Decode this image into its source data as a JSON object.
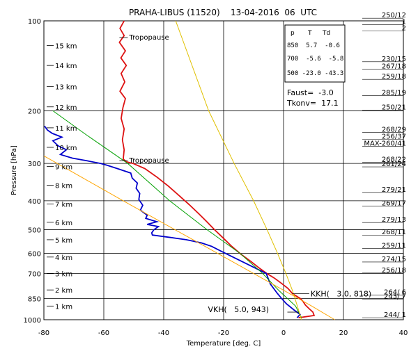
{
  "chart_data": {
    "type": "line",
    "title": "PRAHA-LIBUS (11520)    13-04-2016  06  UTC",
    "xlabel": "Temperature [deg. C]",
    "ylabel": "Pressure [hPa]",
    "xlim": [
      -80,
      40
    ],
    "ylim": [
      1000,
      100
    ],
    "y_scale": "log",
    "grid": true,
    "x_ticks": [
      -80,
      -60,
      -40,
      -20,
      0,
      20,
      40
    ],
    "y_ticks": [
      100,
      200,
      300,
      400,
      500,
      600,
      700,
      850,
      1000
    ],
    "y_tick_labels": [
      "100",
      "200",
      "300",
      "400",
      "500",
      "600",
      "700",
      "850",
      "1000"
    ],
    "height_levels": [
      {
        "label": "1 km",
        "p": 900
      },
      {
        "label": "2 km",
        "p": 795
      },
      {
        "label": "3 km",
        "p": 701
      },
      {
        "label": "4 km",
        "p": 617
      },
      {
        "label": "5 km",
        "p": 540
      },
      {
        "label": "6 km",
        "p": 472
      },
      {
        "label": "7 km",
        "p": 410
      },
      {
        "label": "8 km",
        "p": 355
      },
      {
        "label": "9 km",
        "p": 307
      },
      {
        "label": "10 km",
        "p": 265
      },
      {
        "label": "11 km",
        "p": 228
      },
      {
        "label": "12 km",
        "p": 194
      },
      {
        "label": "13 km",
        "p": 166
      },
      {
        "label": "14 km",
        "p": 141
      },
      {
        "label": "15 km",
        "p": 121
      }
    ],
    "info_table": {
      "header": [
        "p",
        "T",
        "Td"
      ],
      "rows": [
        "850  5.7  -0.6",
        "700  -5.6  -5.8",
        "500 -23.0 -43.3"
      ]
    },
    "faust": "Faust=  -3.0",
    "tkonv": "Tkonv=  17.1",
    "annotations": [
      {
        "text": "Tropopause",
        "t": -52,
        "p": 112
      },
      {
        "text": "Tropopause",
        "t": -52,
        "p": 289
      }
    ],
    "levels_text": [
      {
        "text": "KKH(   3.0, 818)",
        "t": 3.0,
        "p": 818
      },
      {
        "text": "VKH(   5.0, 943)",
        "t": 5.0,
        "p": 943
      }
    ],
    "wind_labels": [
      {
        "text": "250/12",
        "p": 98
      },
      {
        "text": "1",
        "p": 103
      },
      {
        "text": "2",
        "p": 108
      },
      {
        "text": "230/15",
        "p": 137
      },
      {
        "text": "267/18",
        "p": 145
      },
      {
        "text": "259/18",
        "p": 157
      },
      {
        "text": "285/19",
        "p": 178
      },
      {
        "text": "250/21",
        "p": 199
      },
      {
        "text": "268/29",
        "p": 236
      },
      {
        "text": "256/37",
        "p": 249
      },
      {
        "text": "MAX-260/41",
        "p": 263
      },
      {
        "text": "268/22",
        "p": 297
      },
      {
        "text": "261/24",
        "p": 308
      },
      {
        "text": "279/21",
        "p": 375
      },
      {
        "text": "269/17",
        "p": 417
      },
      {
        "text": "279/13",
        "p": 473
      },
      {
        "text": "268/11",
        "p": 521
      },
      {
        "text": "259/11",
        "p": 577
      },
      {
        "text": "274/15",
        "p": 641
      },
      {
        "text": "256/18",
        "p": 698
      },
      {
        "text": "264/ 6",
        "p": 827
      },
      {
        "text": "243/ 7",
        "p": 855
      },
      {
        "text": "244/ 1",
        "p": 985
      }
    ],
    "series": [
      {
        "key": "temperature",
        "color": "#dd1111",
        "points": [
          [
            5.0,
            985
          ],
          [
            10.2,
            968
          ],
          [
            9.8,
            943
          ],
          [
            8.5,
            918
          ],
          [
            7.3,
            893
          ],
          [
            6.5,
            868
          ],
          [
            5.7,
            850
          ],
          [
            3.0,
            818
          ],
          [
            1.5,
            786
          ],
          [
            -0.8,
            754
          ],
          [
            -3.2,
            724
          ],
          [
            -5.6,
            700
          ],
          [
            -8.4,
            668
          ],
          [
            -11.0,
            637
          ],
          [
            -14.2,
            604
          ],
          [
            -17.5,
            566
          ],
          [
            -20.3,
            531
          ],
          [
            -23.0,
            500
          ],
          [
            -25.8,
            468
          ],
          [
            -28.4,
            441
          ],
          [
            -31.5,
            412
          ],
          [
            -34.8,
            385
          ],
          [
            -38.5,
            357
          ],
          [
            -42.3,
            333
          ],
          [
            -46.3,
            312
          ],
          [
            -50.2,
            300
          ],
          [
            -52.5,
            296
          ],
          [
            -53.5,
            290
          ],
          [
            -53.2,
            270
          ],
          [
            -53.8,
            250
          ],
          [
            -53.2,
            230
          ],
          [
            -54.2,
            212
          ],
          [
            -53.6,
            195
          ],
          [
            -52.8,
            182
          ],
          [
            -54.6,
            172
          ],
          [
            -53.0,
            160
          ],
          [
            -54.2,
            150
          ],
          [
            -52.5,
            141
          ],
          [
            -54.3,
            133
          ],
          [
            -52.8,
            126
          ],
          [
            -54.8,
            118
          ],
          [
            -53.2,
            112
          ],
          [
            -54.6,
            106
          ],
          [
            -53.2,
            100
          ]
        ]
      },
      {
        "key": "dewpoint",
        "color": "#0000cc",
        "points": [
          [
            4.5,
            985
          ],
          [
            5.5,
            960
          ],
          [
            3.5,
            928
          ],
          [
            1.0,
            885
          ],
          [
            -0.6,
            850
          ],
          [
            -2.0,
            818
          ],
          [
            -4.4,
            760
          ],
          [
            -5.8,
            700
          ],
          [
            -11.5,
            656
          ],
          [
            -17.5,
            613
          ],
          [
            -21.0,
            589
          ],
          [
            -24.0,
            568
          ],
          [
            -27.5,
            553
          ],
          [
            -32.5,
            540
          ],
          [
            -37.5,
            531
          ],
          [
            -43.8,
            521
          ],
          [
            -44.0,
            512
          ],
          [
            -43.3,
            500
          ],
          [
            -41.8,
            488
          ],
          [
            -45.5,
            480
          ],
          [
            -42.3,
            470
          ],
          [
            -46.0,
            458
          ],
          [
            -45.5,
            447
          ],
          [
            -47.8,
            430
          ],
          [
            -47.0,
            414
          ],
          [
            -48.3,
            396
          ],
          [
            -48.0,
            378
          ],
          [
            -49.2,
            363
          ],
          [
            -48.8,
            349
          ],
          [
            -50.5,
            336
          ],
          [
            -51.0,
            323
          ],
          [
            -55.5,
            312
          ],
          [
            -59.0,
            304
          ],
          [
            -61.0,
            300
          ],
          [
            -65.5,
            294
          ],
          [
            -70.5,
            288
          ],
          [
            -74.5,
            280
          ],
          [
            -72.5,
            270
          ],
          [
            -75.2,
            262
          ],
          [
            -77.0,
            252
          ],
          [
            -74.0,
            245
          ],
          [
            -77.2,
            238
          ],
          [
            -78.8,
            232
          ],
          [
            -79.8,
            225
          ]
        ]
      },
      {
        "key": "lifted-parcel",
        "color": "#00a000",
        "points": [
          [
            6.0,
            985
          ],
          [
            4.0,
            900
          ],
          [
            -1.5,
            800
          ],
          [
            -7.0,
            700
          ],
          [
            -14.5,
            600
          ],
          [
            -25.5,
            500
          ],
          [
            -38.0,
            400
          ],
          [
            -52.0,
            300
          ],
          [
            -66.0,
            240
          ],
          [
            -77.0,
            200
          ]
        ]
      },
      {
        "key": "dry-adiabat",
        "color": "#ffa500",
        "points": [
          [
            17.1,
            1000
          ],
          [
            9.4,
            900
          ],
          [
            0.3,
            800
          ],
          [
            -10.0,
            700
          ],
          [
            -22.0,
            600
          ],
          [
            -36.2,
            500
          ],
          [
            -53.5,
            400
          ],
          [
            -75.5,
            300
          ],
          [
            -80,
            283
          ]
        ]
      },
      {
        "key": "mixing-ratio-line",
        "color": "#e0c000",
        "points": [
          [
            6.0,
            1000
          ],
          [
            4.6,
            900
          ],
          [
            3.0,
            800
          ],
          [
            0.8,
            700
          ],
          [
            -2.0,
            600
          ],
          [
            -5.5,
            500
          ],
          [
            -10.0,
            400
          ],
          [
            -16.5,
            300
          ],
          [
            -25.0,
            200
          ],
          [
            -36.0,
            100
          ]
        ]
      }
    ]
  }
}
